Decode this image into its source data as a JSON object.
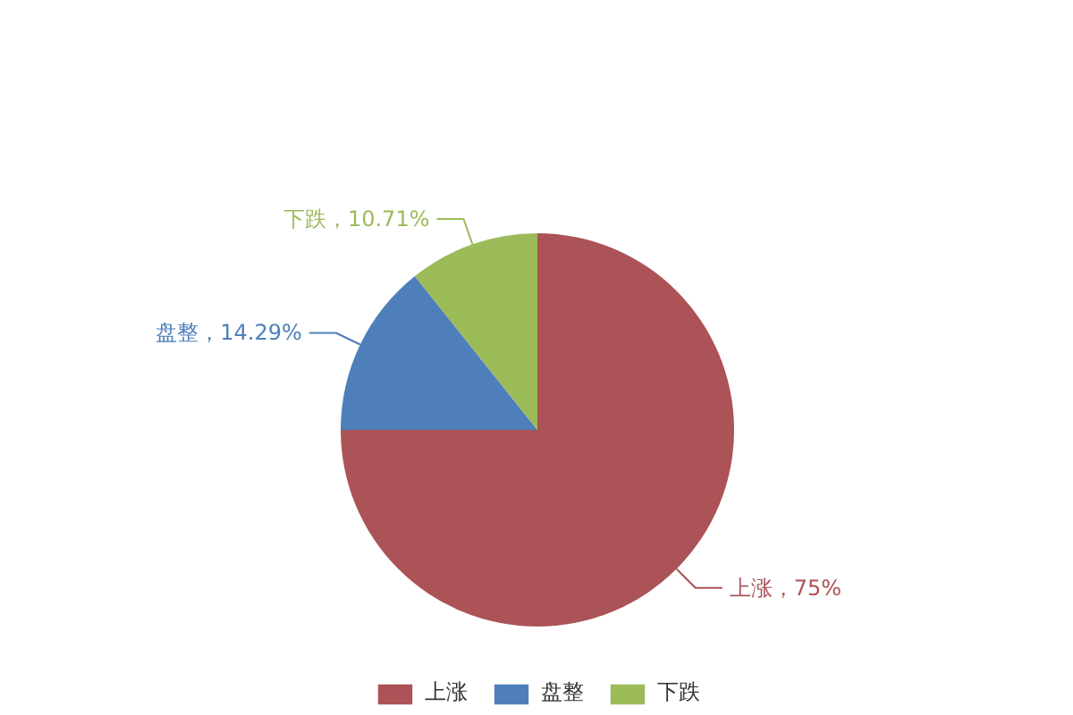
{
  "chart_data": {
    "type": "pie",
    "categories": [
      "上涨",
      "盘整",
      "下跌"
    ],
    "values": [
      75,
      14.29,
      10.71
    ],
    "colors": [
      "#ab5356",
      "#4e7fbb",
      "#9bbb59"
    ],
    "value_labels": [
      "上涨，75%",
      "盘整，14.29%",
      "下跌，10.71%"
    ],
    "legend": "bottom"
  }
}
